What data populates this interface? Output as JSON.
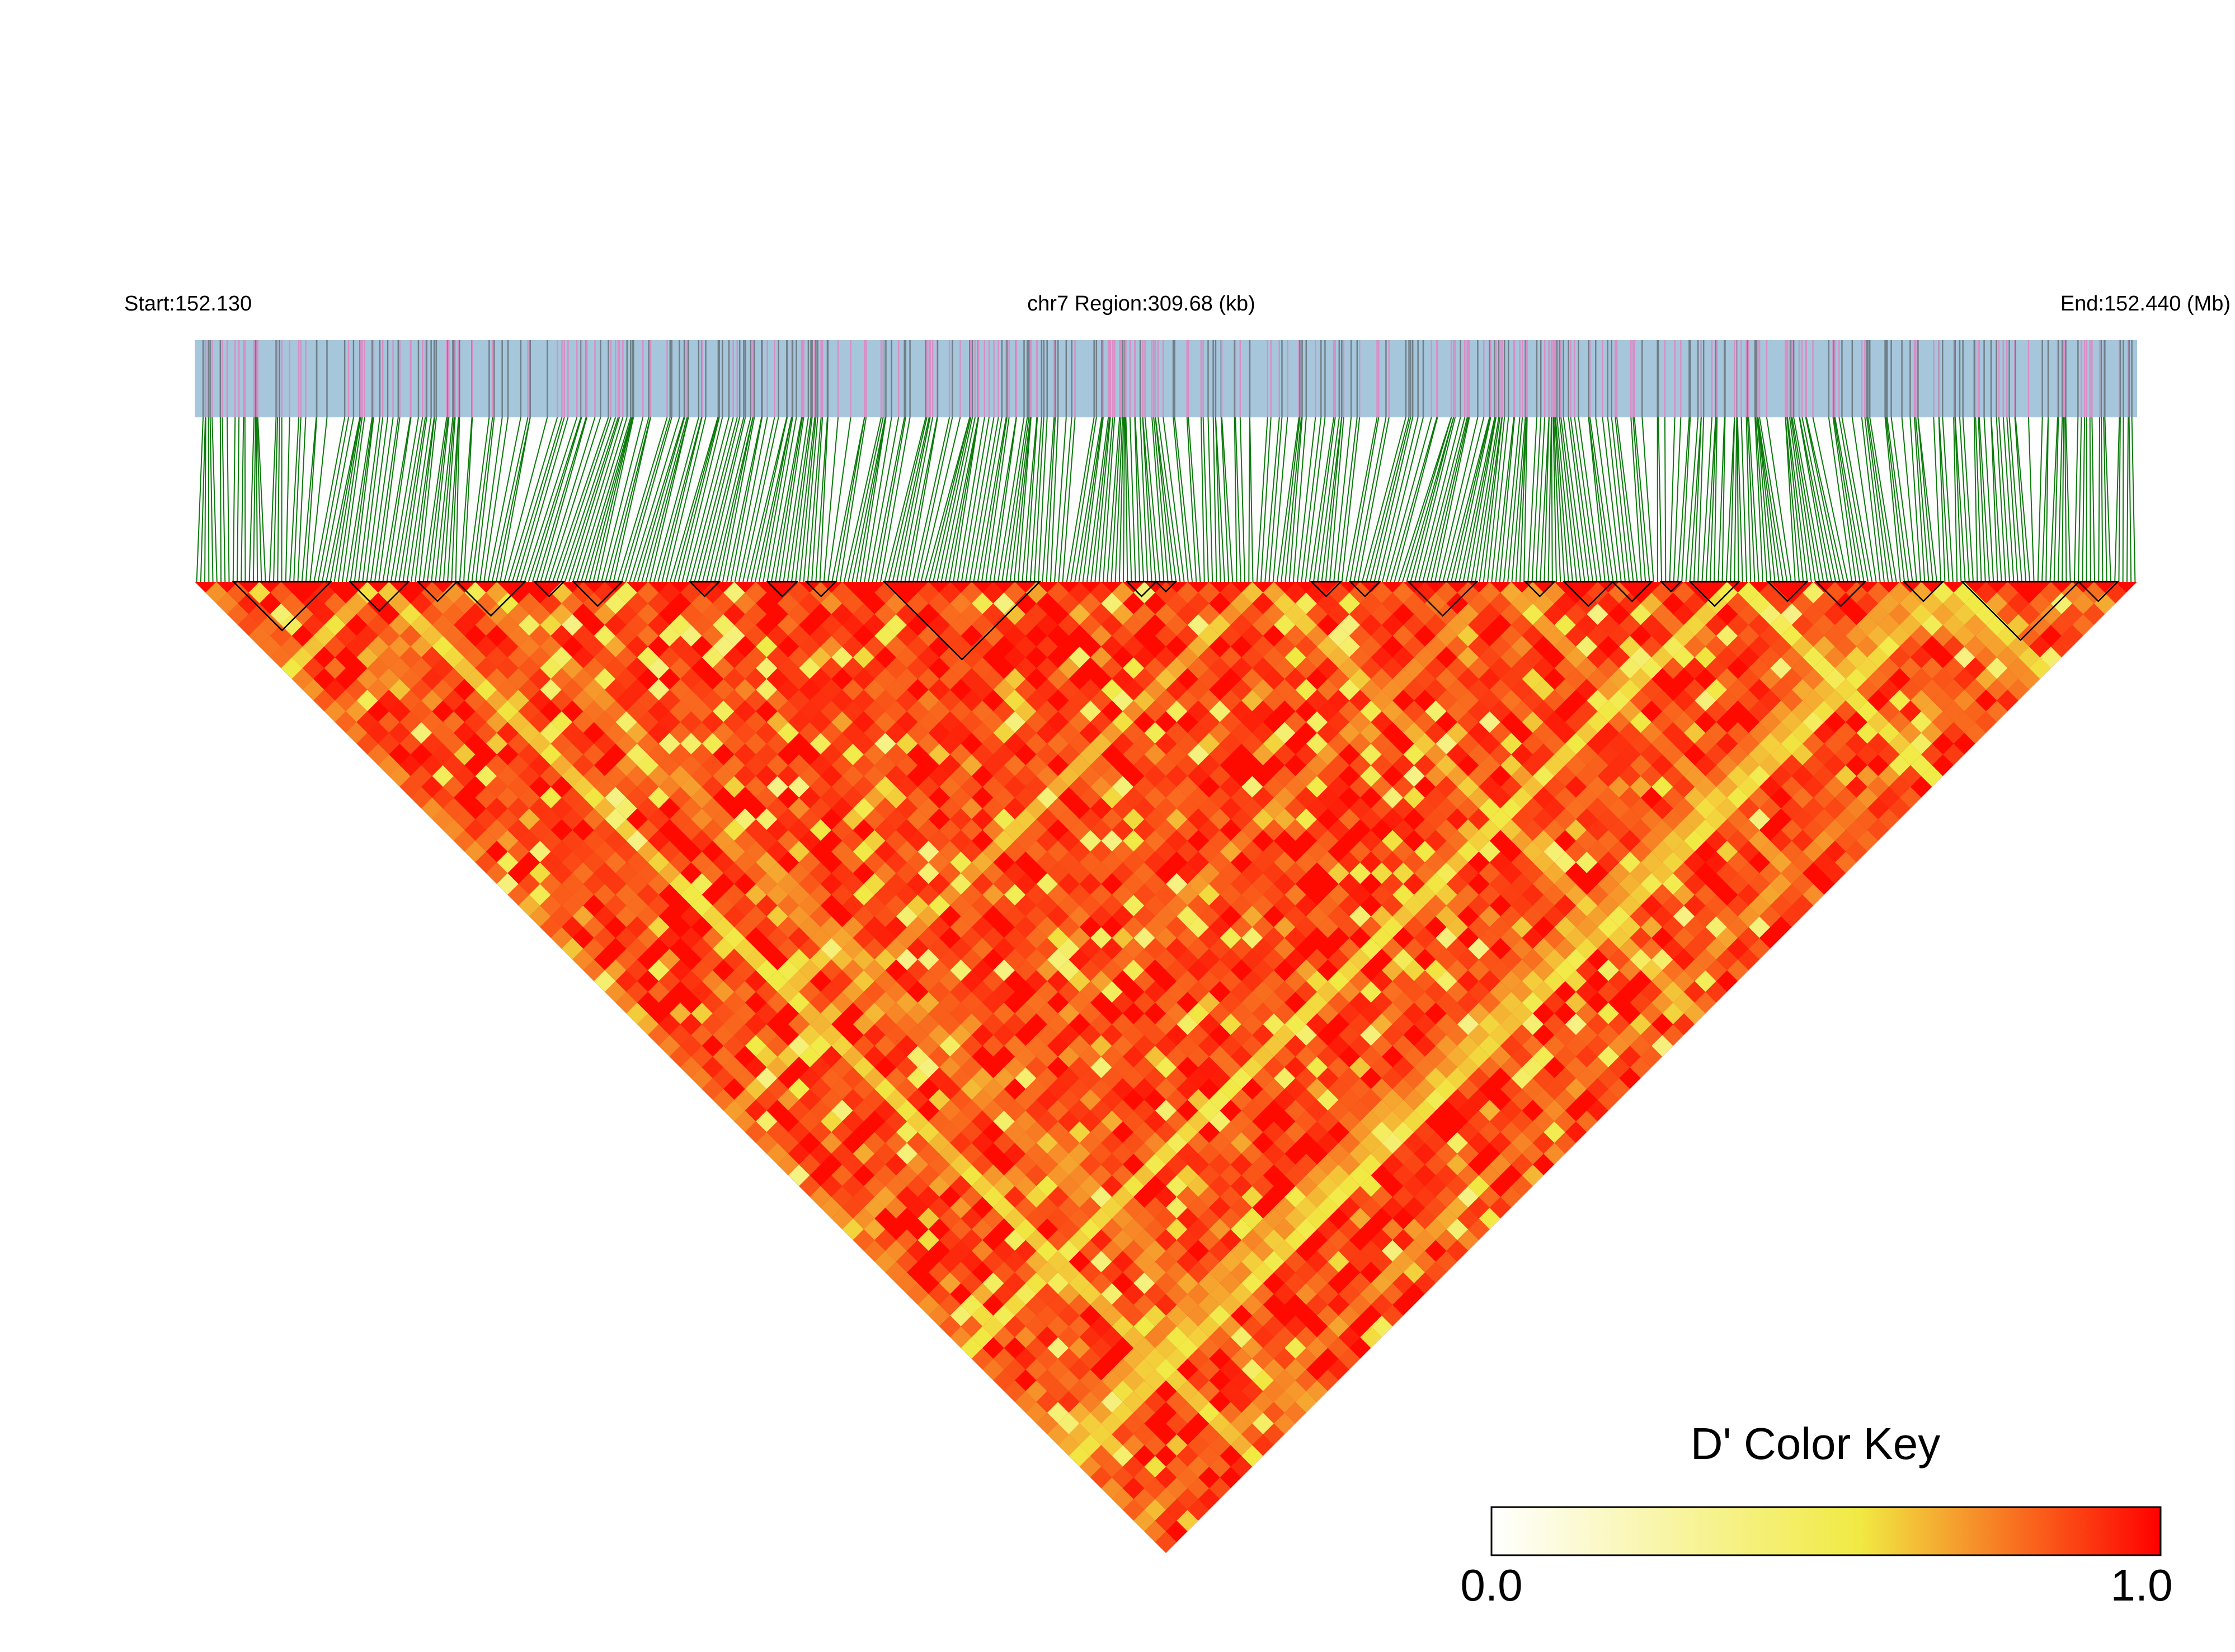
{
  "chart_data": {
    "type": "heatmap",
    "subtype": "LD triangle",
    "chromosome": "chr7",
    "start_label": "Start:152.130",
    "region_label": "chr7 Region:309.68 (kb)",
    "end_label": "End:152.440 (Mb)",
    "region_start_mb": 152.13,
    "region_end_mb": 152.44,
    "region_span_kb": 309.68,
    "n_markers_approx": 480,
    "value_range": [
      0.0,
      1.0
    ],
    "color_key": {
      "title": "D' Color Key",
      "min_label": "0.0",
      "max_label": "1.0",
      "colors": [
        "#ffffff",
        "#f1ea43",
        "#ff0000"
      ]
    },
    "track_colors": {
      "background": "#a6c6dc",
      "pink": "#d98ec6",
      "gray": "#707f87",
      "connector": "#0a7a0a"
    },
    "block_outline_color": "#000000"
  }
}
